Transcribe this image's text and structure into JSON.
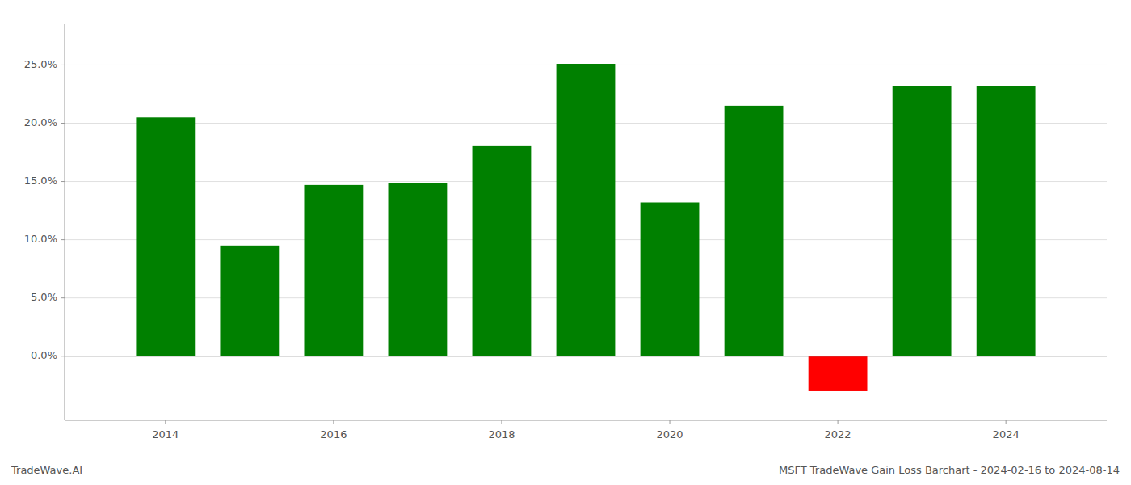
{
  "chart_data": {
    "type": "bar",
    "title": "MSFT TradeWave Gain Loss Barchart - 2024-02-16 to 2024-08-14",
    "annotations": [
      "TradeWave.AI"
    ],
    "x": [
      2014,
      2015,
      2016,
      2017,
      2018,
      2019,
      2020,
      2021,
      2022,
      2023,
      2024
    ],
    "values": [
      0.205,
      0.095,
      0.147,
      0.149,
      0.181,
      0.251,
      0.132,
      0.215,
      -0.03,
      0.232,
      0.232
    ],
    "colors": [
      "#008000",
      "#008000",
      "#008000",
      "#008000",
      "#008000",
      "#008000",
      "#008000",
      "#008000",
      "#ff0000",
      "#008000",
      "#008000"
    ],
    "xlim": [
      2012.8,
      2025.2
    ],
    "xticks": [
      2014,
      2016,
      2018,
      2020,
      2022,
      2024
    ],
    "ylim": [
      -0.055,
      0.285
    ],
    "yticks": [
      {
        "value": 0.0,
        "label": "0.0%"
      },
      {
        "value": 0.05,
        "label": "5.0%"
      },
      {
        "value": 0.1,
        "label": "10.0%"
      },
      {
        "value": 0.15,
        "label": "15.0%"
      },
      {
        "value": 0.2,
        "label": "20.0%"
      },
      {
        "value": 0.25,
        "label": "25.0%"
      }
    ],
    "grid": true
  }
}
